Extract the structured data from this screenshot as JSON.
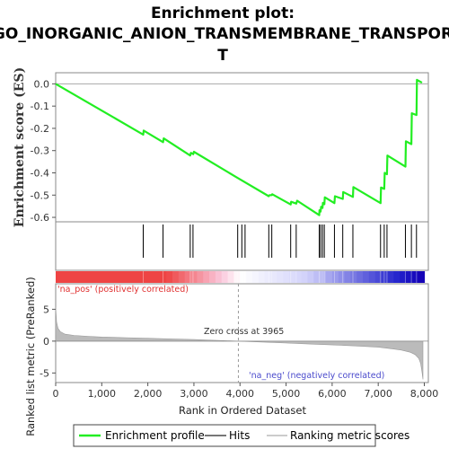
{
  "title_lines": [
    "Enrichment plot:",
    "GO_INORGANIC_ANION_TRANSMEMBRANE_TRANSPOR",
    "T"
  ],
  "colors": {
    "es_line": "#22ee22",
    "hits": "#000000",
    "metric_fill": "#bbbbbb",
    "pos_label": "#e03030",
    "neg_label": "#4a4acc",
    "bar_red": "#ee4444",
    "bar_blue": "#2222cc"
  },
  "legend": {
    "enrichment": "Enrichment profile",
    "hits": "Hits",
    "metric": "Ranking metric scores"
  },
  "chart_data": [
    {
      "type": "line",
      "name": "enrichment-profile",
      "ylabel": "Enrichment score (ES)",
      "ylim": [
        -0.62,
        0.05
      ],
      "xlim": [
        0,
        8000
      ],
      "y_ticks": [
        0.0,
        -0.1,
        -0.2,
        -0.3,
        -0.4,
        -0.5,
        -0.6
      ],
      "y_tick_labels": [
        "0.0",
        "-0.1",
        "-0.2",
        "-0.3",
        "-0.4",
        "-0.5",
        "-0.6"
      ],
      "grid": false,
      "x": [
        0,
        1900,
        1910,
        2330,
        2345,
        2920,
        2935,
        2985,
        3000,
        3950,
        4625,
        4640,
        4690,
        4700,
        5100,
        5110,
        5220,
        5240,
        5720,
        5725,
        5750,
        5760,
        5790,
        5800,
        5830,
        5840,
        6050,
        6060,
        6230,
        6240,
        6450,
        6460,
        7050,
        7060,
        7130,
        7140,
        7190,
        7200,
        7590,
        7600,
        7720,
        7730,
        7830,
        7840,
        7950
      ],
      "y": [
        0.0,
        -0.228,
        -0.21,
        -0.262,
        -0.245,
        -0.322,
        -0.31,
        -0.316,
        -0.305,
        -0.423,
        -0.505,
        -0.5,
        -0.5,
        -0.496,
        -0.542,
        -0.53,
        -0.538,
        -0.525,
        -0.59,
        -0.568,
        -0.574,
        -0.552,
        -0.558,
        -0.535,
        -0.541,
        -0.51,
        -0.536,
        -0.505,
        -0.517,
        -0.486,
        -0.508,
        -0.464,
        -0.536,
        -0.466,
        -0.472,
        -0.4,
        -0.406,
        -0.322,
        -0.372,
        -0.258,
        -0.271,
        -0.132,
        -0.14,
        0.018,
        0.005
      ]
    },
    {
      "type": "scatter",
      "name": "hits",
      "x": [
        1900,
        2330,
        2920,
        2980,
        3950,
        4040,
        4110,
        4625,
        4690,
        5100,
        5220,
        5720,
        5750,
        5790,
        5830,
        6050,
        6230,
        6450,
        7050,
        7130,
        7190,
        7590,
        7720,
        7830
      ]
    },
    {
      "type": "area",
      "name": "ranking-metric",
      "ylabel": "Ranked list metric (PreRanked)",
      "xlabel": "Rank in Ordered Dataset",
      "ylim": [
        -6.5,
        9
      ],
      "xlim": [
        0,
        8000
      ],
      "x_ticks": [
        0,
        1000,
        2000,
        3000,
        4000,
        5000,
        6000,
        7000,
        8000
      ],
      "x_tick_labels": [
        "0",
        "1,000",
        "2,000",
        "3,000",
        "4,000",
        "5,000",
        "6,000",
        "7,000",
        "8,000"
      ],
      "y_ticks": [
        5,
        0,
        -5
      ],
      "y_tick_labels": [
        "5",
        "0",
        "-5"
      ],
      "x": [
        0,
        20,
        50,
        100,
        200,
        400,
        700,
        1000,
        1500,
        2000,
        2500,
        3000,
        3500,
        3965,
        4500,
        5000,
        5500,
        6000,
        6500,
        7000,
        7300,
        7500,
        7700,
        7800,
        7880,
        7920,
        7950,
        7970
      ],
      "values": [
        5.3,
        3.0,
        2.0,
        1.5,
        1.1,
        0.9,
        0.75,
        0.65,
        0.55,
        0.45,
        0.35,
        0.25,
        0.12,
        0.0,
        -0.15,
        -0.3,
        -0.45,
        -0.6,
        -0.75,
        -0.95,
        -1.2,
        -1.4,
        -1.75,
        -2.1,
        -2.7,
        -3.5,
        -4.8,
        -6.0
      ],
      "zero_cross_rank": 3965,
      "annotations": {
        "zero_cross": "Zero cross at 3965",
        "pos": "'na_pos' (positively correlated)",
        "neg": "'na_neg' (negatively correlated)"
      }
    }
  ]
}
